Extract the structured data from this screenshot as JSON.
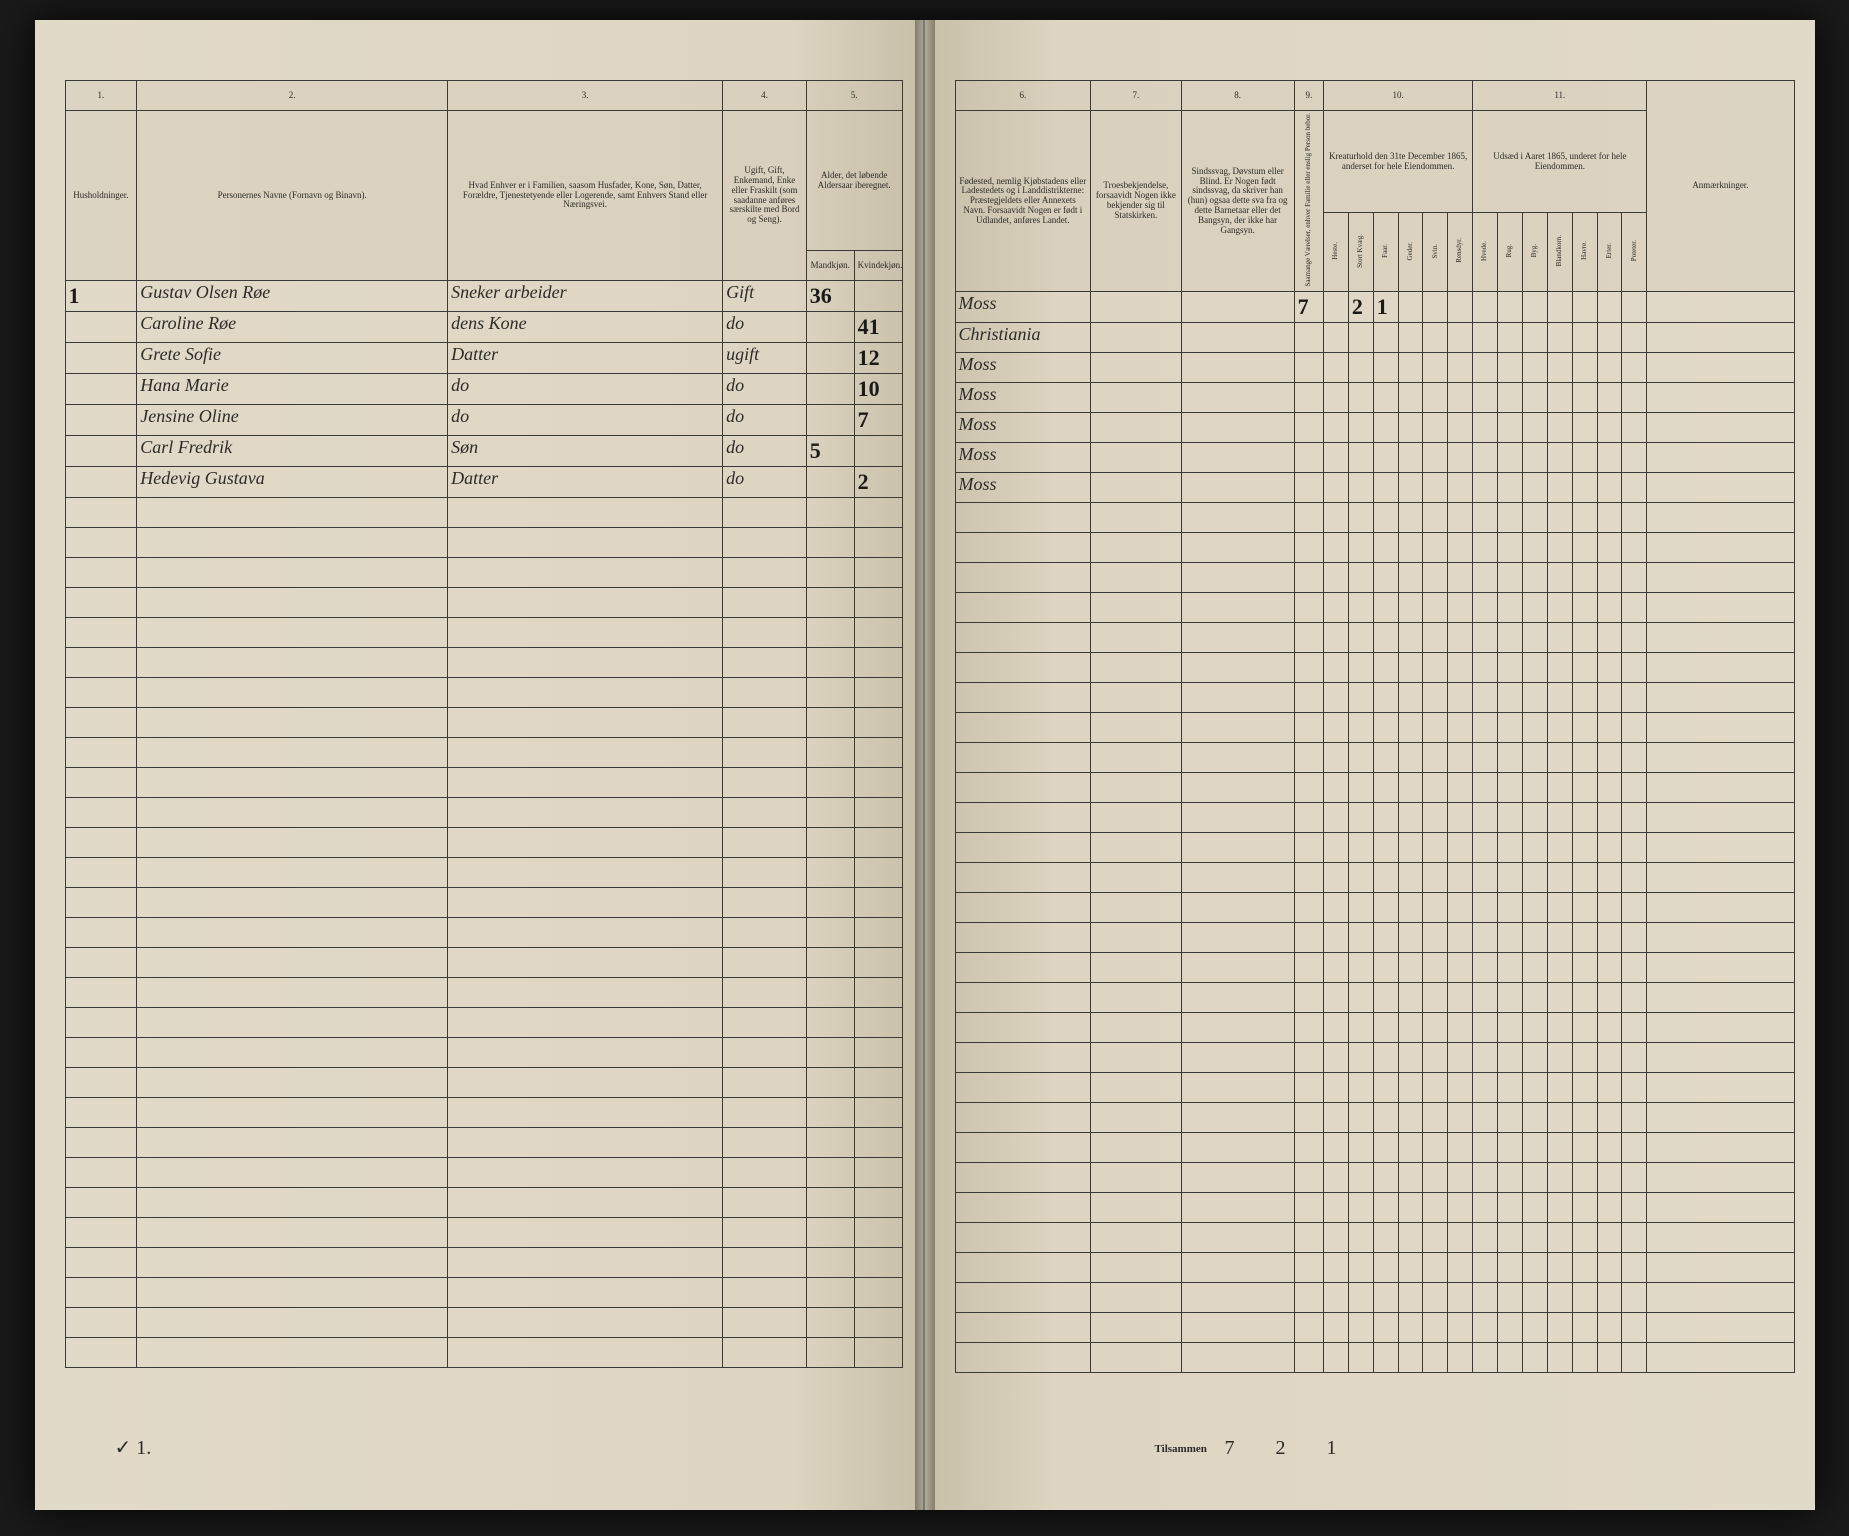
{
  "document_type": "census_ledger",
  "colors": {
    "page_bg": "#ded5c2",
    "ink": "#2a2a2a",
    "border": "#3a3a3a",
    "outer": "#1a1a1a"
  },
  "left_page": {
    "col_numbers": [
      "1.",
      "2.",
      "3.",
      "4.",
      "5."
    ],
    "headers": {
      "c1": "Husholdninger.",
      "c2": "Personernes Navne (Fornavn og Binavn).",
      "c3": "Hvad Enhver er i Familien, saasom Husfader, Kone, Søn, Datter, Forældre, Tjenestetyende eller Logerende, samt Enhvers Stand eller Næringsvei.",
      "c4": "Ugift, Gift, Enkemand, Enke eller Fraskilt (som saadanne anføres særskilte med Bord og Seng).",
      "c5": "Alder, det løbende Aldersaar iberegnet.",
      "c5a": "Mandkjøn.",
      "c5b": "Kvindekjøn."
    },
    "rows": [
      {
        "hh": "1",
        "name": "Gustav Olsen Røe",
        "rel": "Sneker arbeider",
        "stat": "Gift",
        "m": "36",
        "f": ""
      },
      {
        "hh": "",
        "name": "Caroline Røe",
        "rel": "dens Kone",
        "stat": "do",
        "m": "",
        "f": "41"
      },
      {
        "hh": "",
        "name": "Grete Sofie",
        "rel": "Datter",
        "stat": "ugift",
        "m": "",
        "f": "12"
      },
      {
        "hh": "",
        "name": "Hana Marie",
        "rel": "do",
        "stat": "do",
        "m": "",
        "f": "10"
      },
      {
        "hh": "",
        "name": "Jensine Oline",
        "rel": "do",
        "stat": "do",
        "m": "",
        "f": "7"
      },
      {
        "hh": "",
        "name": "Carl Fredrik",
        "rel": "Søn",
        "stat": "do",
        "m": "5",
        "f": ""
      },
      {
        "hh": "",
        "name": "Hedevig Gustava",
        "rel": "Datter",
        "stat": "do",
        "m": "",
        "f": "2"
      }
    ],
    "footer": "✓ 1."
  },
  "right_page": {
    "col_numbers": [
      "6.",
      "7.",
      "8.",
      "9.",
      "10.",
      "11."
    ],
    "headers": {
      "c6": "Fødested, nemlig Kjøbstadens eller Ladestedets og i Landdistrikterne: Præstegjeldets eller Annexets Navn. Forsaavidt Nogen er født i Udlandet, anføres Landet.",
      "c7": "Troesbekjendelse, forsaavidt Nogen ikke bekjender sig til Statskirken.",
      "c8": "Sindssvag, Døvstum eller Blind. Er Nogen født sindssvag, da skriver han (hun) ogsaa dette sva fra og dette Barnetaar eller det Bangsyn, der ikke har Gangsyn.",
      "c9": "Saamange Værelser, enhver Familie eller enslig Person bebor.",
      "c10_title": "Kreaturhold den 31te December 1865, anderset for hele Eiendommen.",
      "c10_sub": [
        "Heste.",
        "Stort Kvæg.",
        "Faar.",
        "Geder.",
        "Svin.",
        "Rensdyr."
      ],
      "c11_title": "Udsæd i Aaret 1865, underet for hele Eiendommen.",
      "c11_sub": [
        "Hvede.",
        "Rug.",
        "Byg.",
        "Blandkorn.",
        "Havre.",
        "Erter.",
        "Poteter."
      ],
      "c12": "Anmærkninger."
    },
    "rows": [
      {
        "birth": "Moss",
        "c7": "",
        "c8": "",
        "c9": "7",
        "h": "",
        "k": "2",
        "f": "1",
        "g": "",
        "s": "",
        "r": ""
      },
      {
        "birth": "Christiania",
        "c7": "",
        "c8": "",
        "c9": "",
        "h": "",
        "k": "",
        "f": "",
        "g": "",
        "s": "",
        "r": ""
      },
      {
        "birth": "Moss",
        "c7": "",
        "c8": "",
        "c9": "",
        "h": "",
        "k": "",
        "f": "",
        "g": "",
        "s": "",
        "r": ""
      },
      {
        "birth": "Moss",
        "c7": "",
        "c8": "",
        "c9": "",
        "h": "",
        "k": "",
        "f": "",
        "g": "",
        "s": "",
        "r": ""
      },
      {
        "birth": "Moss",
        "c7": "",
        "c8": "",
        "c9": "",
        "h": "",
        "k": "",
        "f": "",
        "g": "",
        "s": "",
        "r": ""
      },
      {
        "birth": "Moss",
        "c7": "",
        "c8": "",
        "c9": "",
        "h": "",
        "k": "",
        "f": "",
        "g": "",
        "s": "",
        "r": ""
      },
      {
        "birth": "Moss",
        "c7": "",
        "c8": "",
        "c9": "",
        "h": "",
        "k": "",
        "f": "",
        "g": "",
        "s": "",
        "r": ""
      }
    ],
    "tilsammen_label": "Tilsammen",
    "tilsammen_values": "7   2  1"
  },
  "empty_row_count": 29
}
